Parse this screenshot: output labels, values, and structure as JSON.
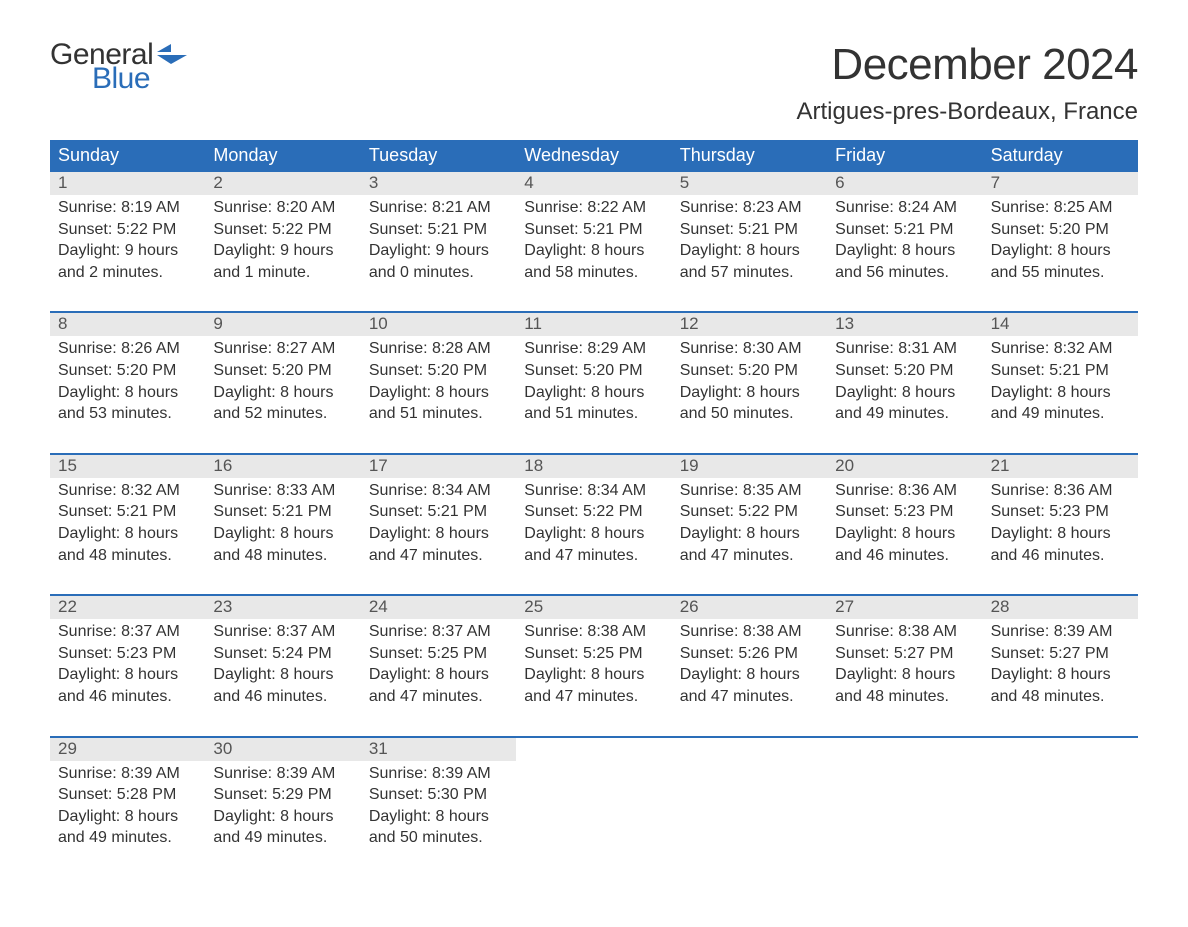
{
  "brand": {
    "word1": "General",
    "word2": "Blue",
    "flag_color": "#2a6db8",
    "text1_color": "#333333",
    "text2_color": "#2a6db8"
  },
  "header": {
    "title": "December 2024",
    "subtitle": "Artigues-pres-Bordeaux, France"
  },
  "colors": {
    "header_bg": "#2a6db8",
    "header_text": "#ffffff",
    "daynum_bg": "#e8e8e8",
    "daynum_text": "#555555",
    "body_text": "#333333",
    "page_bg": "#ffffff",
    "week_border": "#2a6db8"
  },
  "typography": {
    "title_fontsize": 44,
    "subtitle_fontsize": 24,
    "weekday_fontsize": 18,
    "daynum_fontsize": 17,
    "cell_fontsize": 16,
    "logo_fontsize": 30
  },
  "calendar": {
    "type": "table",
    "columns": [
      "Sunday",
      "Monday",
      "Tuesday",
      "Wednesday",
      "Thursday",
      "Friday",
      "Saturday"
    ],
    "weeks": [
      {
        "days": [
          {
            "num": "1",
            "sunrise": "Sunrise: 8:19 AM",
            "sunset": "Sunset: 5:22 PM",
            "dl1": "Daylight: 9 hours",
            "dl2": "and 2 minutes."
          },
          {
            "num": "2",
            "sunrise": "Sunrise: 8:20 AM",
            "sunset": "Sunset: 5:22 PM",
            "dl1": "Daylight: 9 hours",
            "dl2": "and 1 minute."
          },
          {
            "num": "3",
            "sunrise": "Sunrise: 8:21 AM",
            "sunset": "Sunset: 5:21 PM",
            "dl1": "Daylight: 9 hours",
            "dl2": "and 0 minutes."
          },
          {
            "num": "4",
            "sunrise": "Sunrise: 8:22 AM",
            "sunset": "Sunset: 5:21 PM",
            "dl1": "Daylight: 8 hours",
            "dl2": "and 58 minutes."
          },
          {
            "num": "5",
            "sunrise": "Sunrise: 8:23 AM",
            "sunset": "Sunset: 5:21 PM",
            "dl1": "Daylight: 8 hours",
            "dl2": "and 57 minutes."
          },
          {
            "num": "6",
            "sunrise": "Sunrise: 8:24 AM",
            "sunset": "Sunset: 5:21 PM",
            "dl1": "Daylight: 8 hours",
            "dl2": "and 56 minutes."
          },
          {
            "num": "7",
            "sunrise": "Sunrise: 8:25 AM",
            "sunset": "Sunset: 5:20 PM",
            "dl1": "Daylight: 8 hours",
            "dl2": "and 55 minutes."
          }
        ]
      },
      {
        "days": [
          {
            "num": "8",
            "sunrise": "Sunrise: 8:26 AM",
            "sunset": "Sunset: 5:20 PM",
            "dl1": "Daylight: 8 hours",
            "dl2": "and 53 minutes."
          },
          {
            "num": "9",
            "sunrise": "Sunrise: 8:27 AM",
            "sunset": "Sunset: 5:20 PM",
            "dl1": "Daylight: 8 hours",
            "dl2": "and 52 minutes."
          },
          {
            "num": "10",
            "sunrise": "Sunrise: 8:28 AM",
            "sunset": "Sunset: 5:20 PM",
            "dl1": "Daylight: 8 hours",
            "dl2": "and 51 minutes."
          },
          {
            "num": "11",
            "sunrise": "Sunrise: 8:29 AM",
            "sunset": "Sunset: 5:20 PM",
            "dl1": "Daylight: 8 hours",
            "dl2": "and 51 minutes."
          },
          {
            "num": "12",
            "sunrise": "Sunrise: 8:30 AM",
            "sunset": "Sunset: 5:20 PM",
            "dl1": "Daylight: 8 hours",
            "dl2": "and 50 minutes."
          },
          {
            "num": "13",
            "sunrise": "Sunrise: 8:31 AM",
            "sunset": "Sunset: 5:20 PM",
            "dl1": "Daylight: 8 hours",
            "dl2": "and 49 minutes."
          },
          {
            "num": "14",
            "sunrise": "Sunrise: 8:32 AM",
            "sunset": "Sunset: 5:21 PM",
            "dl1": "Daylight: 8 hours",
            "dl2": "and 49 minutes."
          }
        ]
      },
      {
        "days": [
          {
            "num": "15",
            "sunrise": "Sunrise: 8:32 AM",
            "sunset": "Sunset: 5:21 PM",
            "dl1": "Daylight: 8 hours",
            "dl2": "and 48 minutes."
          },
          {
            "num": "16",
            "sunrise": "Sunrise: 8:33 AM",
            "sunset": "Sunset: 5:21 PM",
            "dl1": "Daylight: 8 hours",
            "dl2": "and 48 minutes."
          },
          {
            "num": "17",
            "sunrise": "Sunrise: 8:34 AM",
            "sunset": "Sunset: 5:21 PM",
            "dl1": "Daylight: 8 hours",
            "dl2": "and 47 minutes."
          },
          {
            "num": "18",
            "sunrise": "Sunrise: 8:34 AM",
            "sunset": "Sunset: 5:22 PM",
            "dl1": "Daylight: 8 hours",
            "dl2": "and 47 minutes."
          },
          {
            "num": "19",
            "sunrise": "Sunrise: 8:35 AM",
            "sunset": "Sunset: 5:22 PM",
            "dl1": "Daylight: 8 hours",
            "dl2": "and 47 minutes."
          },
          {
            "num": "20",
            "sunrise": "Sunrise: 8:36 AM",
            "sunset": "Sunset: 5:23 PM",
            "dl1": "Daylight: 8 hours",
            "dl2": "and 46 minutes."
          },
          {
            "num": "21",
            "sunrise": "Sunrise: 8:36 AM",
            "sunset": "Sunset: 5:23 PM",
            "dl1": "Daylight: 8 hours",
            "dl2": "and 46 minutes."
          }
        ]
      },
      {
        "days": [
          {
            "num": "22",
            "sunrise": "Sunrise: 8:37 AM",
            "sunset": "Sunset: 5:23 PM",
            "dl1": "Daylight: 8 hours",
            "dl2": "and 46 minutes."
          },
          {
            "num": "23",
            "sunrise": "Sunrise: 8:37 AM",
            "sunset": "Sunset: 5:24 PM",
            "dl1": "Daylight: 8 hours",
            "dl2": "and 46 minutes."
          },
          {
            "num": "24",
            "sunrise": "Sunrise: 8:37 AM",
            "sunset": "Sunset: 5:25 PM",
            "dl1": "Daylight: 8 hours",
            "dl2": "and 47 minutes."
          },
          {
            "num": "25",
            "sunrise": "Sunrise: 8:38 AM",
            "sunset": "Sunset: 5:25 PM",
            "dl1": "Daylight: 8 hours",
            "dl2": "and 47 minutes."
          },
          {
            "num": "26",
            "sunrise": "Sunrise: 8:38 AM",
            "sunset": "Sunset: 5:26 PM",
            "dl1": "Daylight: 8 hours",
            "dl2": "and 47 minutes."
          },
          {
            "num": "27",
            "sunrise": "Sunrise: 8:38 AM",
            "sunset": "Sunset: 5:27 PM",
            "dl1": "Daylight: 8 hours",
            "dl2": "and 48 minutes."
          },
          {
            "num": "28",
            "sunrise": "Sunrise: 8:39 AM",
            "sunset": "Sunset: 5:27 PM",
            "dl1": "Daylight: 8 hours",
            "dl2": "and 48 minutes."
          }
        ]
      },
      {
        "days": [
          {
            "num": "29",
            "sunrise": "Sunrise: 8:39 AM",
            "sunset": "Sunset: 5:28 PM",
            "dl1": "Daylight: 8 hours",
            "dl2": "and 49 minutes."
          },
          {
            "num": "30",
            "sunrise": "Sunrise: 8:39 AM",
            "sunset": "Sunset: 5:29 PM",
            "dl1": "Daylight: 8 hours",
            "dl2": "and 49 minutes."
          },
          {
            "num": "31",
            "sunrise": "Sunrise: 8:39 AM",
            "sunset": "Sunset: 5:30 PM",
            "dl1": "Daylight: 8 hours",
            "dl2": "and 50 minutes."
          },
          {
            "empty": true
          },
          {
            "empty": true
          },
          {
            "empty": true
          },
          {
            "empty": true
          }
        ]
      }
    ]
  }
}
